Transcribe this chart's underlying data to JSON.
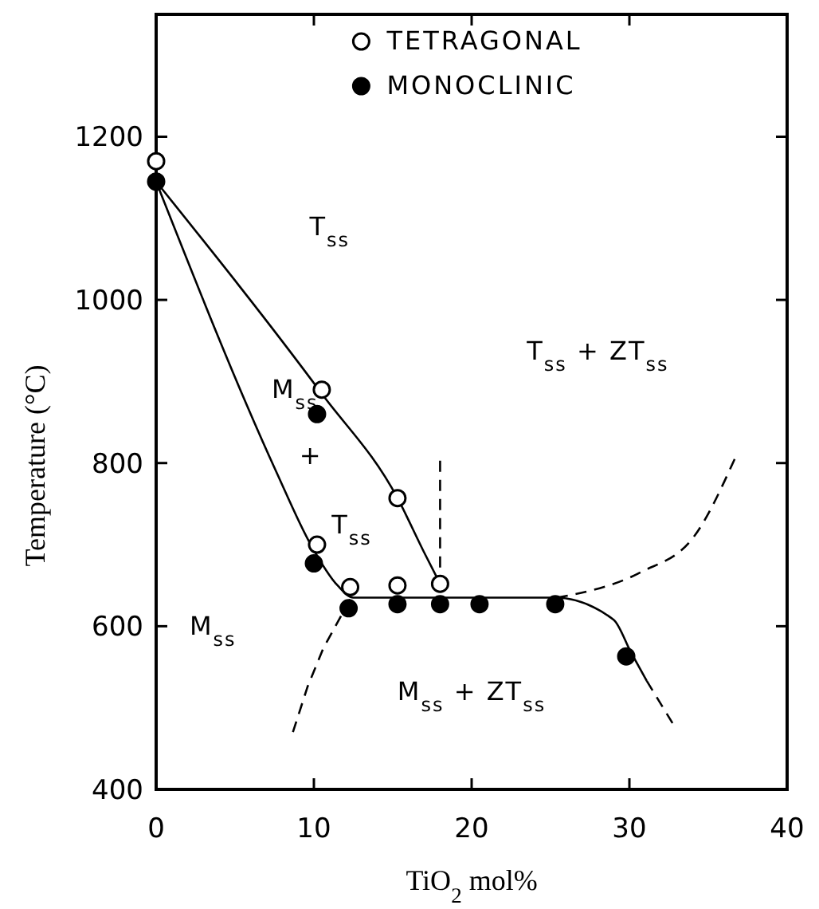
{
  "chart_data": {
    "type": "scatter",
    "xlabel": "TiO$_{2}$ mol%",
    "ylabel": "Temperature (°C)",
    "xlim": [
      0,
      40
    ],
    "xticks": [
      0,
      10,
      20,
      30,
      40
    ],
    "ylim": [
      400,
      1350
    ],
    "yticks": [
      400,
      600,
      800,
      1000,
      1200
    ],
    "legend": "top",
    "marker": "none",
    "series": [
      {
        "type": "line",
        "color": "#000000",
        "line_style": "solid",
        "x": [
          0,
          10.5,
          15.3,
          17,
          18
        ],
        "values": [
          1145,
          885,
          757,
          690,
          652
        ]
      },
      {
        "type": "line",
        "color": "#000000",
        "line_style": "solid",
        "x": [
          0,
          7.6,
          9.8,
          11.5,
          12.5,
          25.3,
          29,
          30.1,
          31.1
        ],
        "values": [
          1145,
          790,
          700,
          650,
          635,
          635,
          608,
          568,
          533
        ]
      },
      {
        "type": "line",
        "color": "#000000",
        "line_style": "dashed",
        "x": [
          31.1,
          32.9
        ],
        "values": [
          533,
          476
        ]
      },
      {
        "type": "line",
        "color": "#000000",
        "line_style": "dashed",
        "x": [
          25.4,
          30.7,
          34.1,
          36.7
        ],
        "values": [
          635,
          666,
          710,
          806
        ]
      },
      {
        "type": "line",
        "color": "#000000",
        "line_style": "dashed",
        "x": [
          12.3,
          10.6,
          9.6,
          8.6
        ],
        "values": [
          633,
          573,
          526,
          466
        ]
      },
      {
        "type": "line",
        "color": "#000000",
        "line_style": "dashed",
        "x": [
          18,
          18
        ],
        "values": [
          803,
          650
        ]
      },
      {
        "name": "TETRAGONAL",
        "marker": "circle",
        "color": "#ffffff",
        "x": [
          0,
          10.5,
          10.2,
          12.3,
          15.3,
          15.3,
          18
        ],
        "values": [
          1170,
          890,
          700,
          648,
          650,
          757,
          652
        ]
      },
      {
        "name": "MONOCLINIC",
        "marker": "circle",
        "color": "#000000",
        "x": [
          0,
          10.2,
          10,
          12.2,
          15.3,
          18,
          20.5,
          25.3,
          29.8
        ],
        "values": [
          1145,
          860,
          677,
          622,
          627,
          627,
          627,
          627,
          563
        ]
      }
    ],
    "annotations": [
      "T$_{ss}$",
      "T$_{ss}$ + ZT$_{ss}$",
      "M$_{ss}$",
      "+",
      "T$_{ss}$",
      "M$_{ss}$",
      "M$_{ss}$ + ZT$_{ss}$"
    ]
  }
}
